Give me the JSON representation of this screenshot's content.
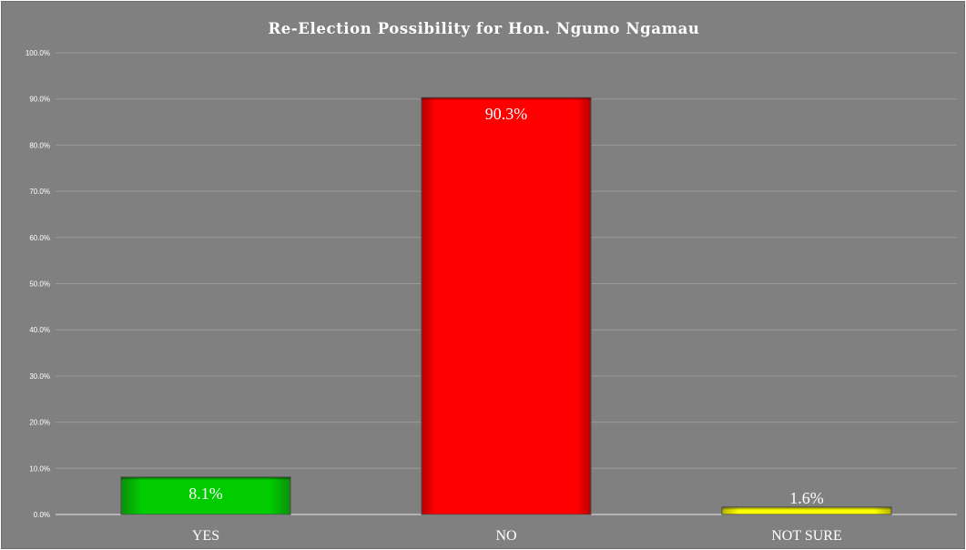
{
  "chart_data": {
    "type": "bar",
    "title": "Re-Election Possibility for Hon. Ngumo Ngamau",
    "xlabel": "",
    "ylabel": "",
    "categories": [
      "YES",
      "NO",
      "NOT SURE"
    ],
    "values": [
      8.1,
      90.3,
      1.6
    ],
    "data_labels": [
      "8.1%",
      "90.3%",
      "1.6%"
    ],
    "colors": [
      "#00cc00",
      "#ff0000",
      "#ffff00"
    ],
    "ylim": [
      0,
      100
    ],
    "yticks": [
      0,
      10,
      20,
      30,
      40,
      50,
      60,
      70,
      80,
      90,
      100
    ],
    "ytick_labels": [
      "0.0%",
      "10.0%",
      "20.0%",
      "30.0%",
      "40.0%",
      "50.0%",
      "60.0%",
      "70.0%",
      "80.0%",
      "90.0%",
      "100.0%"
    ],
    "grid": true,
    "legend": "none",
    "background": "#808080"
  }
}
